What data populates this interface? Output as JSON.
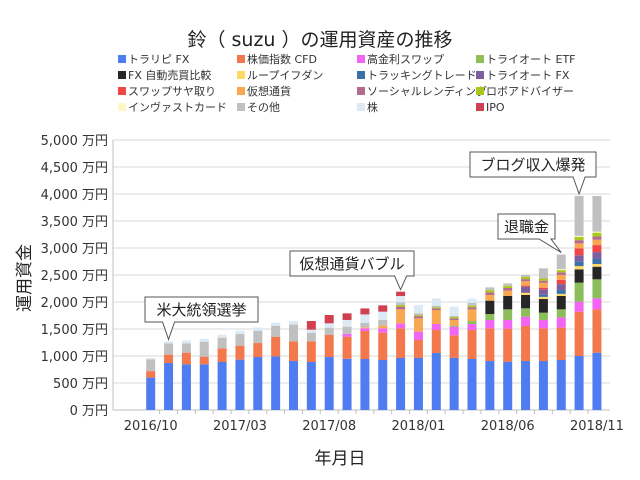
{
  "chart_data": {
    "type": "bar",
    "stacked": true,
    "title": "鈴（ suzu ）の運用資産の推移",
    "xlabel": "年月日",
    "ylabel": "運用資金",
    "ylim": [
      0,
      5000
    ],
    "yticks": [
      "0 万円",
      "500 万円",
      "1,000 万円",
      "1,500 万円",
      "2,000 万円",
      "2,500 万円",
      "3,000 万円",
      "3,500 万円",
      "4,000 万円",
      "4,500 万円",
      "5,000 万円"
    ],
    "xtick_labels": [
      "2016/10",
      "2017/03",
      "2017/08",
      "2018/01",
      "2018/06",
      "2018/11"
    ],
    "categories": [
      "2016/10",
      "2016/11",
      "2016/12",
      "2017/01",
      "2017/02",
      "2017/03",
      "2017/04",
      "2017/05",
      "2017/06",
      "2017/07",
      "2017/08",
      "2017/09",
      "2017/10",
      "2017/11",
      "2017/12",
      "2018/01",
      "2018/02",
      "2018/03",
      "2018/04",
      "2018/05",
      "2018/06",
      "2018/07",
      "2018/08",
      "2018/09",
      "2018/10",
      "2018/11"
    ],
    "grid": true,
    "legend_position": "top",
    "series": [
      {
        "name": "トラリピ FX",
        "color": "#4f7cf0",
        "values": [
          600,
          870,
          846,
          846,
          889,
          932,
          981,
          993,
          907,
          889,
          981,
          949,
          944,
          926,
          963,
          963,
          1055,
          963,
          944,
          907,
          895,
          907,
          907,
          926,
          1000,
          1061
        ]
      },
      {
        "name": "株価指数 CFD",
        "color": "#f4784d",
        "values": [
          120,
          155,
          216,
          142,
          253,
          259,
          259,
          365,
          365,
          383,
          408,
          409,
          519,
          506,
          549,
          333,
          426,
          420,
          537,
          605,
          611,
          649,
          605,
          599,
          821,
          803
        ]
      },
      {
        "name": "高金利スワップ",
        "color": "#f264f2",
        "values": [
          0,
          0,
          0,
          0,
          0,
          0,
          0,
          0,
          0,
          0,
          0,
          49,
          49,
          80,
          93,
          155,
          112,
          160,
          112,
          155,
          161,
          172,
          155,
          191,
          185,
          204
        ]
      },
      {
        "name": "トライオート ETF",
        "color": "#8cbd5a",
        "values": [
          0,
          0,
          0,
          0,
          0,
          0,
          0,
          0,
          0,
          0,
          0,
          0,
          0,
          0,
          0,
          0,
          0,
          20,
          54,
          111,
          197,
          155,
          135,
          148,
          352,
          352
        ]
      },
      {
        "name": "FX 自動売買比較",
        "color": "#262626",
        "values": [
          0,
          0,
          0,
          0,
          0,
          0,
          0,
          0,
          0,
          0,
          0,
          0,
          0,
          0,
          0,
          0,
          0,
          0,
          0,
          247,
          247,
          247,
          253,
          247,
          247,
          234
        ]
      },
      {
        "name": "ループイフダン",
        "color": "#ffd966",
        "values": [
          0,
          0,
          0,
          0,
          0,
          0,
          0,
          0,
          0,
          0,
          0,
          0,
          0,
          0,
          0,
          0,
          0,
          0,
          0,
          0,
          0,
          40,
          40,
          40,
          60,
          50
        ]
      },
      {
        "name": "トラッキングトレード",
        "color": "#3c70a8",
        "values": [
          0,
          0,
          0,
          0,
          0,
          0,
          0,
          0,
          0,
          0,
          0,
          0,
          0,
          0,
          0,
          0,
          0,
          0,
          0,
          0,
          0,
          0,
          40,
          70,
          90,
          100
        ]
      },
      {
        "name": "トライオート FX",
        "color": "#7d5fa0",
        "values": [
          0,
          0,
          0,
          0,
          0,
          0,
          0,
          0,
          0,
          0,
          0,
          0,
          0,
          0,
          0,
          0,
          0,
          0,
          0,
          0,
          0,
          114,
          100,
          110,
          110,
          120
        ]
      },
      {
        "name": "スワップサヤ取り",
        "color": "#f04646",
        "values": [
          0,
          0,
          0,
          0,
          0,
          0,
          0,
          0,
          0,
          0,
          0,
          0,
          0,
          0,
          0,
          0,
          0,
          0,
          0,
          0,
          0,
          20,
          30,
          80,
          130,
          130
        ]
      },
      {
        "name": "仮想通貨",
        "color": "#f8a850",
        "values": [
          0,
          0,
          0,
          0,
          0,
          0,
          0,
          0,
          0,
          0,
          0,
          0,
          20,
          50,
          259,
          247,
          259,
          104,
          216,
          105,
          99,
          80,
          90,
          90,
          90,
          100
        ]
      },
      {
        "name": "ソーシャルレンディング",
        "color": "#b56c8c",
        "values": [
          0,
          0,
          0,
          0,
          0,
          0,
          0,
          0,
          0,
          0,
          0,
          0,
          0,
          0,
          50,
          40,
          30,
          30,
          40,
          50,
          50,
          40,
          40,
          50,
          60,
          60
        ]
      },
      {
        "name": "ロボアドバイザー",
        "color": "#a8c81e",
        "values": [
          0,
          0,
          0,
          0,
          0,
          0,
          0,
          0,
          0,
          0,
          0,
          0,
          0,
          0,
          30,
          20,
          20,
          24,
          30,
          40,
          40,
          40,
          40,
          40,
          60,
          70
        ]
      },
      {
        "name": "インヴァストカード",
        "color": "#fff6c8",
        "values": [
          0,
          0,
          0,
          0,
          0,
          0,
          0,
          0,
          0,
          0,
          0,
          0,
          0,
          0,
          0,
          0,
          0,
          0,
          0,
          0,
          0,
          0,
          0,
          20,
          20,
          20
        ]
      },
      {
        "name": "その他",
        "color": "#c0c0c0",
        "values": [
          220,
          210,
          173,
          277,
          198,
          216,
          229,
          203,
          314,
          160,
          136,
          136,
          84,
          105,
          50,
          32,
          24,
          20,
          50,
          51,
          45,
          36,
          188,
          268,
          740,
          660
        ]
      },
      {
        "name": "株",
        "color": "#dbeaf5",
        "values": [
          20,
          35,
          55,
          55,
          55,
          62,
          61,
          56,
          62,
          55,
          80,
          124,
          154,
          154,
          117,
          154,
          142,
          173,
          80,
          0,
          0,
          0,
          0,
          0,
          0,
          0
        ]
      },
      {
        "name": "IPO",
        "color": "#d04050",
        "values": [
          0,
          0,
          0,
          0,
          0,
          0,
          0,
          0,
          0,
          161,
          154,
          123,
          111,
          117,
          80,
          0,
          0,
          0,
          0,
          0,
          0,
          0,
          0,
          0,
          0,
          0
        ]
      }
    ],
    "annotations": [
      {
        "text": "米大統領選挙",
        "category": "2016/11"
      },
      {
        "text": "仮想通貨バブル",
        "category": "2017/12"
      },
      {
        "text": "退職金",
        "category": "2018/09"
      },
      {
        "text": "ブログ収入爆発",
        "category": "2018/10"
      }
    ]
  }
}
